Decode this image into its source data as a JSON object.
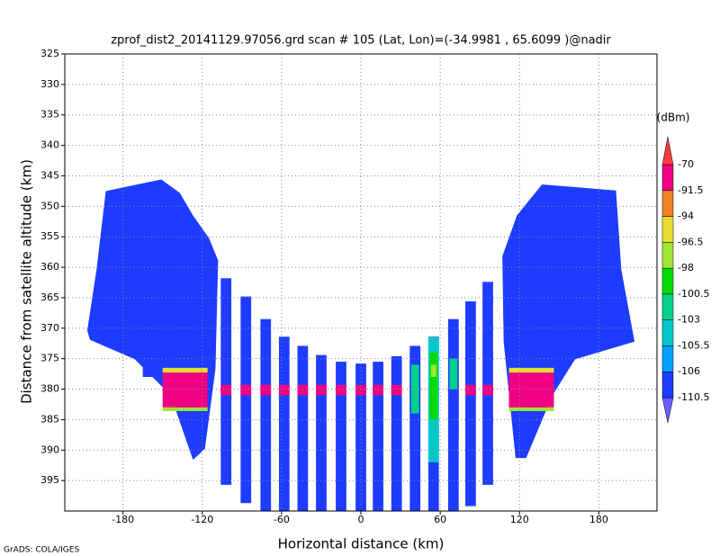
{
  "chart_data": {
    "type": "heatmap",
    "title": "zprof_dist2_20141129.97056.grd  scan # 105  (Lat, Lon)=(-34.9981 , 65.6099 )@nadir",
    "xlabel": "Horizontal distance (km)",
    "ylabel": "Distance from satellite altitude (km)",
    "footer": "GrADS: COLA/IGES",
    "xlim": [
      -224,
      224
    ],
    "ylim": [
      325,
      400
    ],
    "y_inverted": true,
    "xticks": [
      -180,
      -120,
      -60,
      0,
      60,
      120,
      180
    ],
    "yticks": [
      325,
      330,
      335,
      340,
      345,
      350,
      355,
      360,
      365,
      370,
      375,
      380,
      385,
      390,
      395
    ],
    "grid": true,
    "colorbar": {
      "unit": "(dBm)",
      "levels": [
        -110.5,
        -106,
        -105.5,
        -103,
        -100.5,
        -98,
        -96.5,
        -94,
        -91.5,
        -70
      ],
      "colors": [
        "#6a5cff",
        "#1e3cff",
        "#00a0ff",
        "#00c8c8",
        "#00d28c",
        "#00dc00",
        "#a0e632",
        "#e6dc32",
        "#f08228",
        "#f00082",
        "#fa3c3c"
      ]
    },
    "regions": [
      {
        "value": -109,
        "x": [
          -193,
          -151,
          -137,
          -127,
          -115,
          -108,
          -110,
          -118,
          -127,
          -144,
          -171,
          -205,
          -207,
          -200
        ],
        "y": [
          347.5,
          345.6,
          347.8,
          351.5,
          355.2,
          358.9,
          376.6,
          389.8,
          391.6,
          381,
          375.1,
          371.9,
          370.4,
          360.4
        ]
      },
      {
        "value": -109,
        "x": [
          137,
          193,
          197,
          207,
          162,
          145,
          125,
          117,
          108,
          107,
          118
        ],
        "y": [
          346.4,
          347.4,
          360.4,
          372.2,
          375.1,
          381,
          391.3,
          391.3,
          372.2,
          358.2,
          351.5
        ]
      }
    ],
    "beam_width": 8,
    "beam_value": -109,
    "beams": [
      {
        "x": -102,
        "top": 361.8,
        "bottom": 395.7
      },
      {
        "x": -87,
        "top": 364.8,
        "bottom": 398.7
      },
      {
        "x": -72,
        "top": 368.5,
        "bottom": 400
      },
      {
        "x": -58,
        "top": 371.4,
        "bottom": 400
      },
      {
        "x": -44,
        "top": 372.9,
        "bottom": 400
      },
      {
        "x": -30,
        "top": 374.4,
        "bottom": 400
      },
      {
        "x": -15,
        "top": 375.5,
        "bottom": 400
      },
      {
        "x": 0,
        "top": 375.8,
        "bottom": 400
      },
      {
        "x": 13,
        "top": 375.5,
        "bottom": 400
      },
      {
        "x": 27,
        "top": 374.6,
        "bottom": 400
      },
      {
        "x": 41,
        "top": 372.9,
        "bottom": 400
      },
      {
        "x": 55,
        "top": 371.4,
        "bottom": 400
      },
      {
        "x": 70,
        "top": 368.5,
        "bottom": 400
      },
      {
        "x": 83,
        "top": 365.6,
        "bottom": 399.2
      },
      {
        "x": 96,
        "top": 362.4,
        "bottom": 395.7
      }
    ],
    "surface": {
      "top": 379.3,
      "bottom": 381,
      "value": -82
    },
    "patches": [
      {
        "x": [
          -165,
          -148
        ],
        "y": [
          372,
          378
        ],
        "value": -106
      },
      {
        "x": [
          -150,
          -116
        ],
        "y": [
          376.5,
          377.3
        ],
        "value": -95
      },
      {
        "x": [
          -150,
          -116
        ],
        "y": [
          377.3,
          383
        ],
        "value": -80
      },
      {
        "x": [
          -150,
          -116
        ],
        "y": [
          383,
          383.6
        ],
        "value": -97
      },
      {
        "x": [
          112,
          146
        ],
        "y": [
          376.5,
          377.3
        ],
        "value": -95
      },
      {
        "x": [
          112,
          146
        ],
        "y": [
          377.3,
          383
        ],
        "value": -80
      },
      {
        "x": [
          112,
          146
        ],
        "y": [
          383,
          383.6
        ],
        "value": -97
      },
      {
        "x": [
          37,
          45
        ],
        "y": [
          374,
          390
        ],
        "value": -106
      },
      {
        "x": [
          38,
          44
        ],
        "y": [
          376,
          384
        ],
        "value": -101
      },
      {
        "x": [
          51,
          59
        ],
        "y": [
          371.5,
          392
        ],
        "value": -104
      },
      {
        "x": [
          52,
          58
        ],
        "y": [
          374,
          385
        ],
        "value": -100
      },
      {
        "x": [
          53,
          57
        ],
        "y": [
          376,
          378
        ],
        "value": -97
      },
      {
        "x": [
          66,
          74
        ],
        "y": [
          370,
          388
        ],
        "value": -106
      },
      {
        "x": [
          67,
          73
        ],
        "y": [
          375,
          380
        ],
        "value": -101
      }
    ]
  }
}
